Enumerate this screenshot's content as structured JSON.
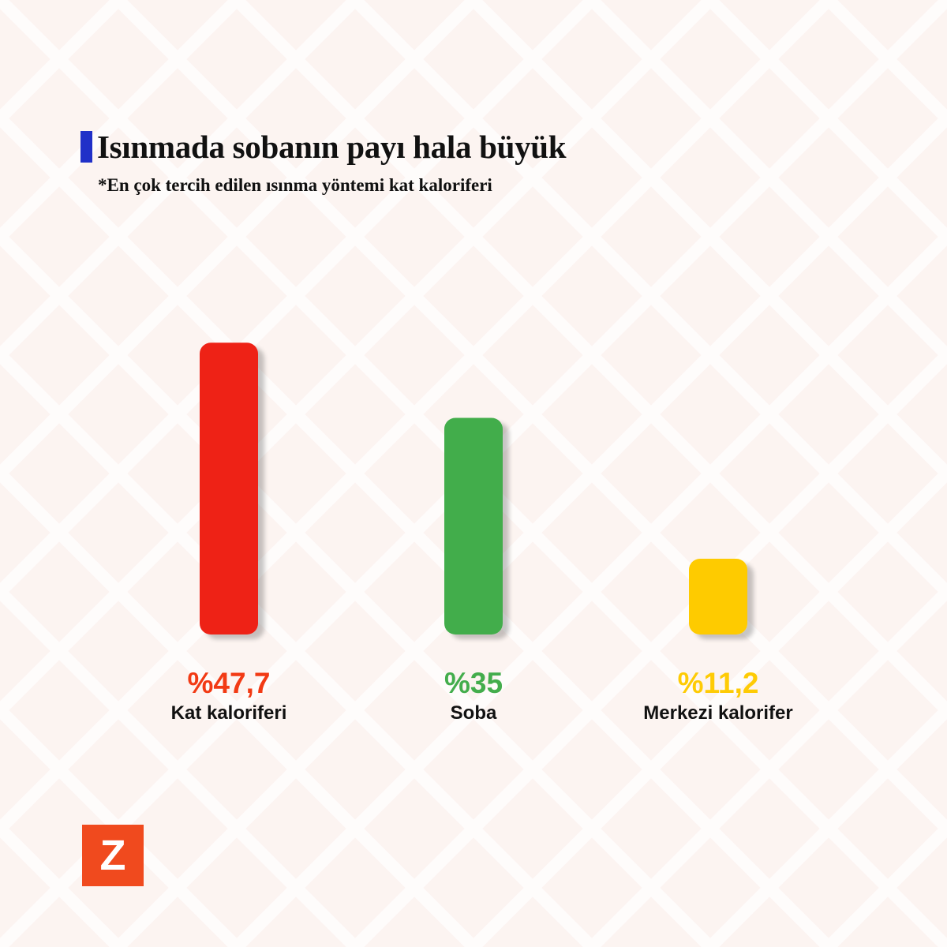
{
  "title": "Isınmada sobanın payı hala büyük",
  "subtitle": "*En çok tercih edilen ısınma yöntemi kat kaloriferi",
  "logo_letter": "Z",
  "colors": {
    "background": "#fcf4f1",
    "accent": "#2030c8",
    "logo": "#f04a1e"
  },
  "chart_data": {
    "type": "bar",
    "categories": [
      "Kat kaloriferi",
      "Soba",
      "Merkezi kalorifer"
    ],
    "values": [
      47.7,
      35,
      11.2
    ],
    "value_labels": [
      "%47,7",
      "%35",
      "%11,2"
    ],
    "colors": [
      "#ee2216",
      "#43ad4c",
      "#fecb05"
    ],
    "label_colors": [
      "#f23a14",
      "#43ad4c",
      "#fecb05"
    ],
    "ylim": [
      0,
      50
    ],
    "grid": false,
    "legend": "none",
    "axis_color": "#2030c8"
  }
}
